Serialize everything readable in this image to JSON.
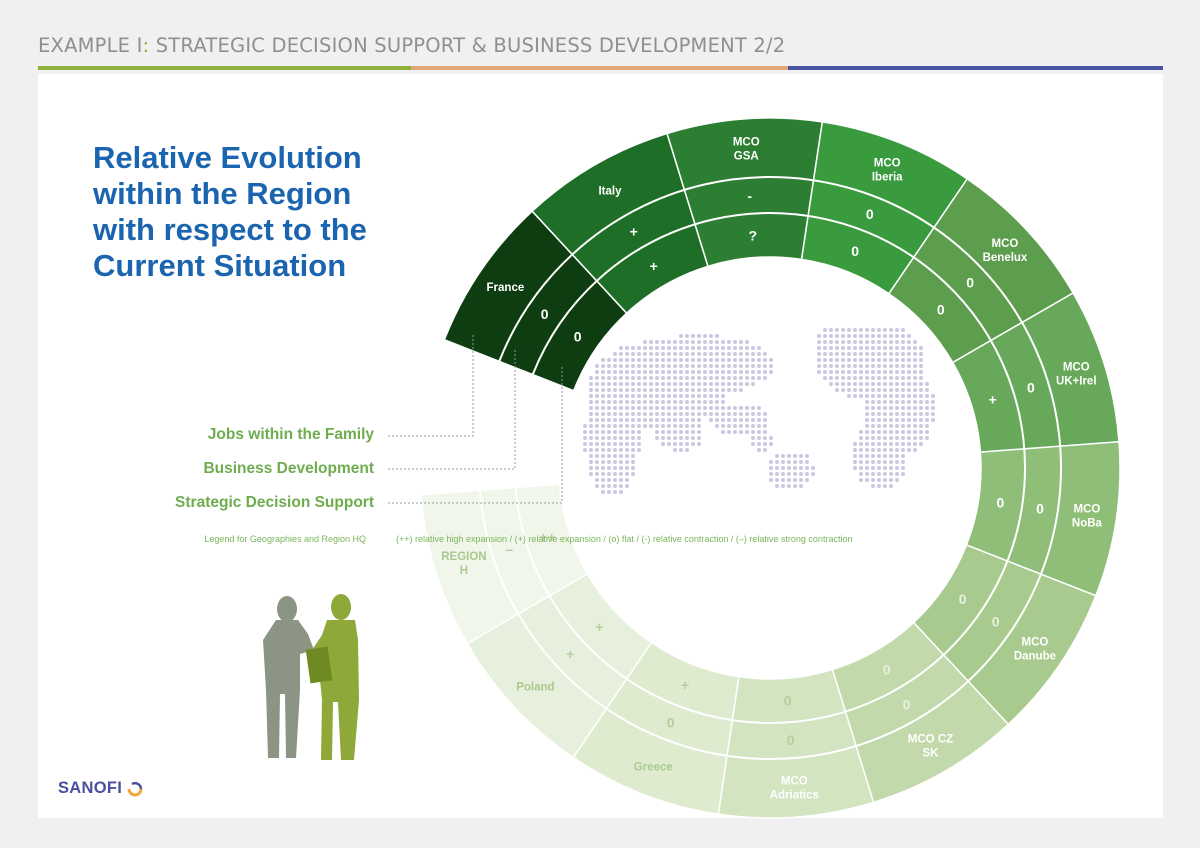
{
  "header": {
    "title_prefix": "EXAMPLE I",
    "title_separator": ":",
    "title_rest": " STRATEGIC DECISION SUPPORT & BUSINESS DEVELOPMENT 2/2",
    "rule_colors": [
      "#8fb33a",
      "#e0a877",
      "#4a55a2"
    ]
  },
  "heading": {
    "lines": [
      "Relative Evolution",
      "within the Region",
      "with respect to the",
      "Current Situation"
    ]
  },
  "rings": {
    "jobs_label": "Jobs within the Family",
    "bd_label": "Business Development",
    "sds_label": "Strategic Decision Support"
  },
  "legend": {
    "left": "Legend for Geographies and Region HQ",
    "right": "(++) relative high expansion / (+) relative expansion / (o) flat / (-) relative contraction / (–) relative strong contraction"
  },
  "segments": [
    {
      "name": "France",
      "bd": "0",
      "sds": "0",
      "color": "#0d3d10"
    },
    {
      "name": "Italy",
      "bd": "+",
      "sds": "+",
      "color": "#1f6e27"
    },
    {
      "name": "MCO\nGSA",
      "bd": "-",
      "sds": "?",
      "color": "#2c7f32"
    },
    {
      "name": "MCO\nIberia",
      "bd": "0",
      "sds": "0",
      "color": "#3a9b3e"
    },
    {
      "name": "MCO\nBenelux",
      "bd": "0",
      "sds": "0",
      "color": "#5c9e4d"
    },
    {
      "name": "MCO\nUK+Irel",
      "bd": "0",
      "sds": "+",
      "color": "#68a85a"
    },
    {
      "name": "MCO\nNoBa",
      "bd": "0",
      "sds": "0",
      "color": "#8fbe78"
    },
    {
      "name": "MCO\nDanube",
      "bd": "0",
      "sds": "0",
      "color": "#a9ca8e"
    },
    {
      "name": "MCO CZ\nSK",
      "bd": "0",
      "sds": "0",
      "color": "#c1d9ab"
    },
    {
      "name": "MCO\nAdriatics",
      "bd": "0",
      "sds": "0",
      "color": "#d2e4c0"
    },
    {
      "name": "Greece",
      "bd": "0",
      "sds": "+",
      "color": "#deebce"
    },
    {
      "name": "Poland",
      "bd": "+",
      "sds": "+",
      "color": "#e7f0dc"
    },
    {
      "name": "REGION\nH",
      "bd": "–",
      "sds": "++",
      "color": "#f1f6ea"
    }
  ],
  "logo": {
    "text": "SANOFI"
  }
}
